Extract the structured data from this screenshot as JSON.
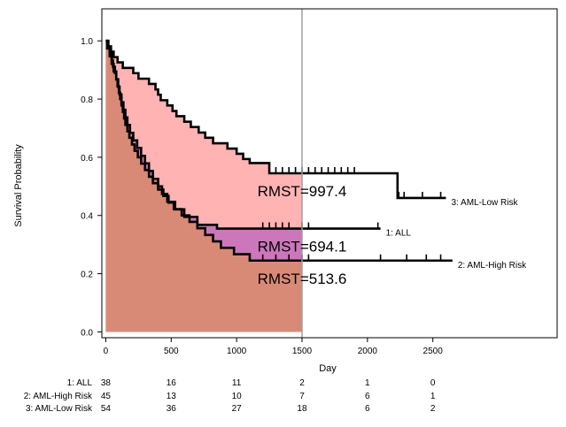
{
  "chart_data": {
    "type": "line",
    "xlabel": "Day",
    "ylabel": "Survival Probability",
    "xlim": [
      -30,
      3450
    ],
    "ylim": [
      -0.02,
      1.11
    ],
    "x_ticks": [
      0,
      500,
      1000,
      1500,
      2000,
      2500
    ],
    "y_ticks": [
      "0.0",
      "0.2",
      "0.4",
      "0.6",
      "0.8",
      "1.0"
    ],
    "grid": false,
    "tau": 1500,
    "colors": {
      "low_risk_area": "#ffb3b3",
      "all_area": "#cc77bb",
      "high_risk_area": "#d98a77",
      "curve": "#000000",
      "reference_line": "#a0a0a0"
    },
    "series": [
      {
        "name": "1: ALL",
        "area_color": "#cc77bb",
        "points": [
          [
            0,
            1.0
          ],
          [
            10,
            0.974
          ],
          [
            30,
            0.947
          ],
          [
            45,
            0.921
          ],
          [
            60,
            0.895
          ],
          [
            80,
            0.868
          ],
          [
            95,
            0.842
          ],
          [
            105,
            0.816
          ],
          [
            120,
            0.789
          ],
          [
            135,
            0.763
          ],
          [
            150,
            0.737
          ],
          [
            165,
            0.711
          ],
          [
            185,
            0.684
          ],
          [
            210,
            0.658
          ],
          [
            240,
            0.632
          ],
          [
            270,
            0.605
          ],
          [
            300,
            0.579
          ],
          [
            330,
            0.553
          ],
          [
            360,
            0.526
          ],
          [
            400,
            0.5
          ],
          [
            430,
            0.474
          ],
          [
            470,
            0.447
          ],
          [
            530,
            0.421
          ],
          [
            600,
            0.395
          ],
          [
            700,
            0.368
          ],
          [
            850,
            0.355
          ],
          [
            2100,
            0.355
          ]
        ],
        "rmst": 694.1,
        "rmst_label": "RMST=694.1",
        "end_label": "1: ALL",
        "censor_x": [
          1200,
          1250,
          1300,
          1350,
          1400,
          1500,
          1550,
          2080
        ]
      },
      {
        "name": "2: AML-High Risk",
        "area_color": "#d98a77",
        "points": [
          [
            0,
            1.0
          ],
          [
            15,
            0.978
          ],
          [
            30,
            0.956
          ],
          [
            45,
            0.933
          ],
          [
            55,
            0.911
          ],
          [
            70,
            0.889
          ],
          [
            80,
            0.867
          ],
          [
            90,
            0.844
          ],
          [
            100,
            0.822
          ],
          [
            110,
            0.8
          ],
          [
            120,
            0.778
          ],
          [
            130,
            0.756
          ],
          [
            140,
            0.733
          ],
          [
            150,
            0.711
          ],
          [
            165,
            0.689
          ],
          [
            180,
            0.667
          ],
          [
            200,
            0.644
          ],
          [
            220,
            0.622
          ],
          [
            245,
            0.6
          ],
          [
            270,
            0.578
          ],
          [
            300,
            0.556
          ],
          [
            330,
            0.533
          ],
          [
            360,
            0.511
          ],
          [
            400,
            0.489
          ],
          [
            440,
            0.467
          ],
          [
            480,
            0.444
          ],
          [
            520,
            0.422
          ],
          [
            580,
            0.4
          ],
          [
            640,
            0.378
          ],
          [
            700,
            0.356
          ],
          [
            760,
            0.333
          ],
          [
            820,
            0.311
          ],
          [
            880,
            0.289
          ],
          [
            980,
            0.267
          ],
          [
            1100,
            0.245
          ],
          [
            1500,
            0.245
          ],
          [
            2650,
            0.245
          ]
        ],
        "rmst": 513.6,
        "rmst_label": "RMST=513.6",
        "end_label": "2: AML-High Risk",
        "censor_x": [
          1200,
          1300,
          1400,
          1500,
          1550,
          2100,
          2300,
          2450,
          2560
        ]
      },
      {
        "name": "3: AML-Low Risk",
        "area_color": "#ffb3b3",
        "points": [
          [
            0,
            1.0
          ],
          [
            20,
            0.981
          ],
          [
            40,
            0.963
          ],
          [
            60,
            0.944
          ],
          [
            90,
            0.926
          ],
          [
            130,
            0.907
          ],
          [
            210,
            0.889
          ],
          [
            250,
            0.87
          ],
          [
            330,
            0.852
          ],
          [
            380,
            0.833
          ],
          [
            400,
            0.815
          ],
          [
            420,
            0.796
          ],
          [
            470,
            0.778
          ],
          [
            510,
            0.759
          ],
          [
            540,
            0.741
          ],
          [
            600,
            0.722
          ],
          [
            650,
            0.704
          ],
          [
            710,
            0.685
          ],
          [
            760,
            0.667
          ],
          [
            820,
            0.648
          ],
          [
            930,
            0.63
          ],
          [
            1000,
            0.612
          ],
          [
            1050,
            0.594
          ],
          [
            1100,
            0.58
          ],
          [
            1200,
            0.58
          ],
          [
            1250,
            0.545
          ],
          [
            1500,
            0.545
          ],
          [
            2200,
            0.545
          ],
          [
            2230,
            0.46
          ],
          [
            2600,
            0.46
          ]
        ],
        "rmst": 997.4,
        "rmst_label": "RMST=997.4",
        "end_label": "3: AML-Low Risk",
        "censor_x": [
          1300,
          1350,
          1400,
          1450,
          1500,
          1550,
          1600,
          1650,
          1700,
          1750,
          1800,
          1850,
          1900,
          2240,
          2280,
          2420,
          2560
        ]
      }
    ],
    "risk_table": {
      "x_ticks": [
        0,
        500,
        1000,
        1500,
        2000,
        2500
      ],
      "rows": [
        {
          "label": "1: ALL",
          "counts": [
            "38",
            "16",
            "11",
            "2",
            "1",
            "0"
          ]
        },
        {
          "label": "2: AML-High Risk",
          "counts": [
            "45",
            "13",
            "10",
            "7",
            "6",
            "1"
          ]
        },
        {
          "label": "3: AML-Low Risk",
          "counts": [
            "54",
            "36",
            "27",
            "18",
            "6",
            "2"
          ]
        }
      ]
    }
  }
}
